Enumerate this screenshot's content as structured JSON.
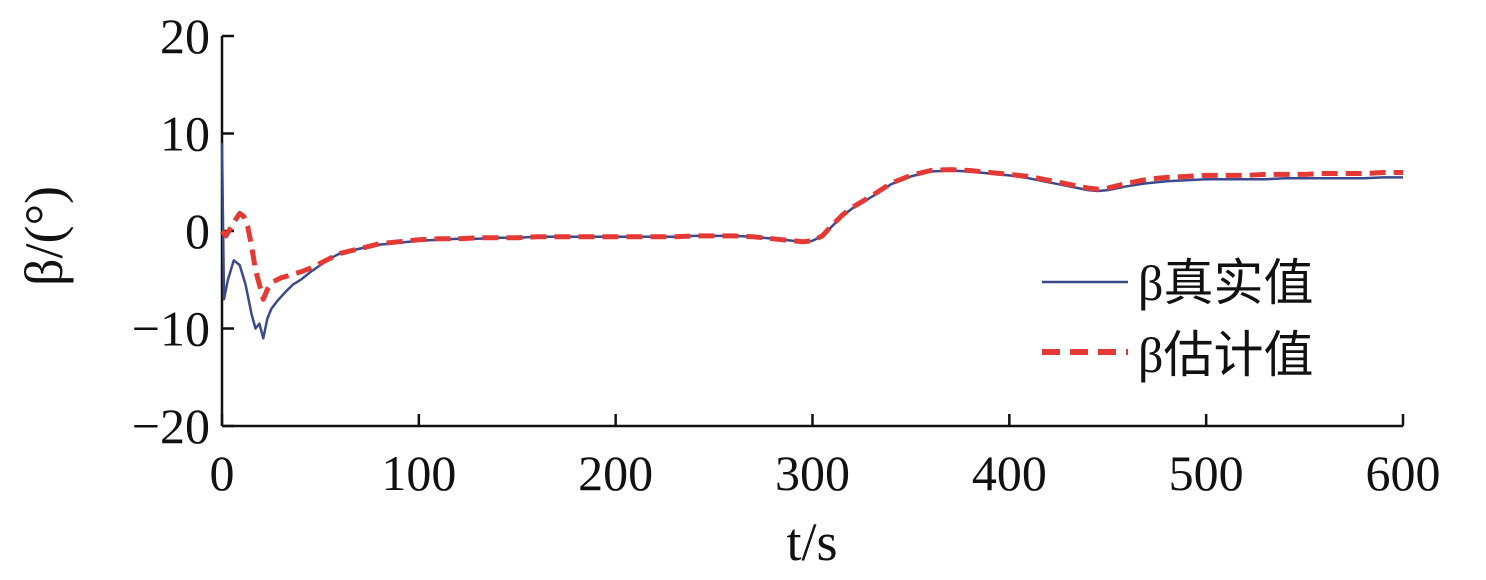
{
  "chart_data": {
    "type": "line",
    "xlabel": "t/s",
    "ylabel": "β/(°)",
    "xlim": [
      0,
      600
    ],
    "ylim": [
      -20,
      20
    ],
    "x_ticks": [
      "0",
      "100",
      "200",
      "300",
      "400",
      "500",
      "600"
    ],
    "y_ticks": [
      "20",
      "10",
      "0",
      "−10",
      "−20"
    ],
    "grid": false,
    "legend_position": "right",
    "colors": {
      "true_value": "#3a4a8c",
      "estimate": "#e53935",
      "axis": "#111111"
    },
    "series": [
      {
        "name": "β真实值",
        "style": "solid",
        "x": [
          0,
          1,
          3,
          6,
          9,
          12,
          15,
          17,
          19,
          21,
          23,
          25,
          28,
          32,
          36,
          40,
          45,
          50,
          55,
          60,
          70,
          80,
          90,
          100,
          110,
          120,
          130,
          140,
          150,
          160,
          170,
          180,
          190,
          200,
          210,
          220,
          230,
          240,
          250,
          260,
          270,
          280,
          290,
          295,
          300,
          305,
          310,
          315,
          320,
          330,
          340,
          350,
          360,
          370,
          380,
          390,
          400,
          410,
          420,
          430,
          440,
          445,
          450,
          460,
          470,
          480,
          490,
          500,
          510,
          520,
          530,
          540,
          550,
          560,
          570,
          580,
          590,
          600
        ],
        "y": [
          9,
          -7,
          -5,
          -3,
          -3.5,
          -5.5,
          -8.5,
          -10,
          -9.5,
          -11,
          -9,
          -8,
          -7.2,
          -6.3,
          -5.5,
          -5,
          -4.2,
          -3.5,
          -2.8,
          -2.3,
          -1.8,
          -1.4,
          -1.2,
          -1.0,
          -0.9,
          -0.8,
          -0.8,
          -0.7,
          -0.7,
          -0.6,
          -0.6,
          -0.6,
          -0.6,
          -0.6,
          -0.6,
          -0.6,
          -0.6,
          -0.5,
          -0.5,
          -0.5,
          -0.6,
          -0.8,
          -1.0,
          -1.2,
          -1.0,
          -0.5,
          0.5,
          1.5,
          2.3,
          3.5,
          4.8,
          5.6,
          6.1,
          6.2,
          6.1,
          5.9,
          5.7,
          5.4,
          5.0,
          4.6,
          4.2,
          4.1,
          4.2,
          4.6,
          4.9,
          5.1,
          5.2,
          5.3,
          5.3,
          5.3,
          5.3,
          5.4,
          5.4,
          5.4,
          5.4,
          5.4,
          5.5,
          5.5
        ]
      },
      {
        "name": "β估计值",
        "style": "dashed",
        "x": [
          0,
          2,
          5,
          7,
          9,
          11,
          13,
          15,
          17,
          19,
          21,
          23,
          26,
          30,
          35,
          40,
          45,
          50,
          55,
          60,
          70,
          80,
          90,
          100,
          110,
          120,
          130,
          140,
          150,
          160,
          170,
          180,
          190,
          200,
          210,
          220,
          230,
          240,
          250,
          260,
          270,
          280,
          290,
          295,
          300,
          305,
          310,
          315,
          320,
          330,
          340,
          350,
          360,
          370,
          380,
          390,
          400,
          410,
          420,
          430,
          440,
          445,
          450,
          460,
          470,
          480,
          490,
          500,
          510,
          520,
          530,
          540,
          550,
          560,
          570,
          580,
          590,
          600
        ],
        "y": [
          0,
          -0.5,
          0.5,
          1.2,
          1.8,
          1.5,
          0.5,
          -1.5,
          -4,
          -5.5,
          -7,
          -6,
          -5.2,
          -4.8,
          -4.5,
          -4.2,
          -3.8,
          -3.3,
          -2.8,
          -2.3,
          -1.8,
          -1.3,
          -1.1,
          -0.9,
          -0.8,
          -0.8,
          -0.7,
          -0.7,
          -0.7,
          -0.6,
          -0.6,
          -0.6,
          -0.6,
          -0.6,
          -0.6,
          -0.6,
          -0.6,
          -0.5,
          -0.5,
          -0.5,
          -0.6,
          -0.8,
          -1.0,
          -1.1,
          -1.0,
          -0.5,
          0.6,
          1.6,
          2.4,
          3.6,
          4.9,
          5.7,
          6.2,
          6.3,
          6.2,
          6.0,
          5.8,
          5.6,
          5.2,
          4.8,
          4.4,
          4.3,
          4.4,
          4.9,
          5.3,
          5.5,
          5.6,
          5.7,
          5.7,
          5.7,
          5.8,
          5.8,
          5.8,
          5.9,
          5.9,
          5.9,
          6.0,
          6.0
        ]
      }
    ]
  }
}
